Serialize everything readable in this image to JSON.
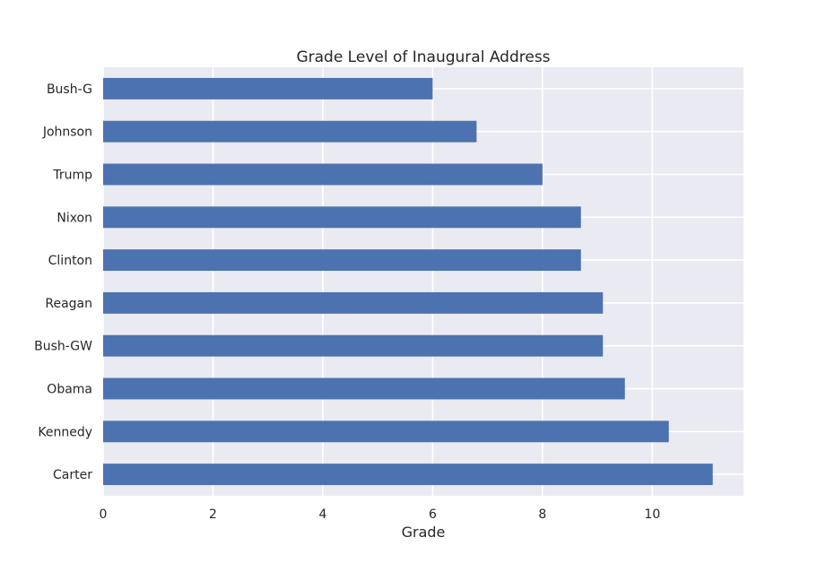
{
  "chart_data": {
    "type": "bar",
    "orientation": "horizontal",
    "title": "Grade Level of Inaugural Address",
    "xlabel": "Grade",
    "ylabel": "",
    "categories": [
      "Bush-G",
      "Johnson",
      "Trump",
      "Nixon",
      "Clinton",
      "Reagan",
      "Bush-GW",
      "Obama",
      "Kennedy",
      "Carter"
    ],
    "values": [
      6.0,
      6.8,
      8.0,
      8.7,
      8.7,
      9.1,
      9.1,
      9.5,
      10.3,
      11.1
    ],
    "xlim": [
      0,
      11.66
    ],
    "xticks": [
      0,
      2,
      4,
      6,
      8,
      10
    ],
    "grid": true,
    "legend": "none",
    "colors": {
      "bar": "#4c72b0",
      "plot_background": "#eaeaf2",
      "grid": "#ffffff"
    }
  }
}
